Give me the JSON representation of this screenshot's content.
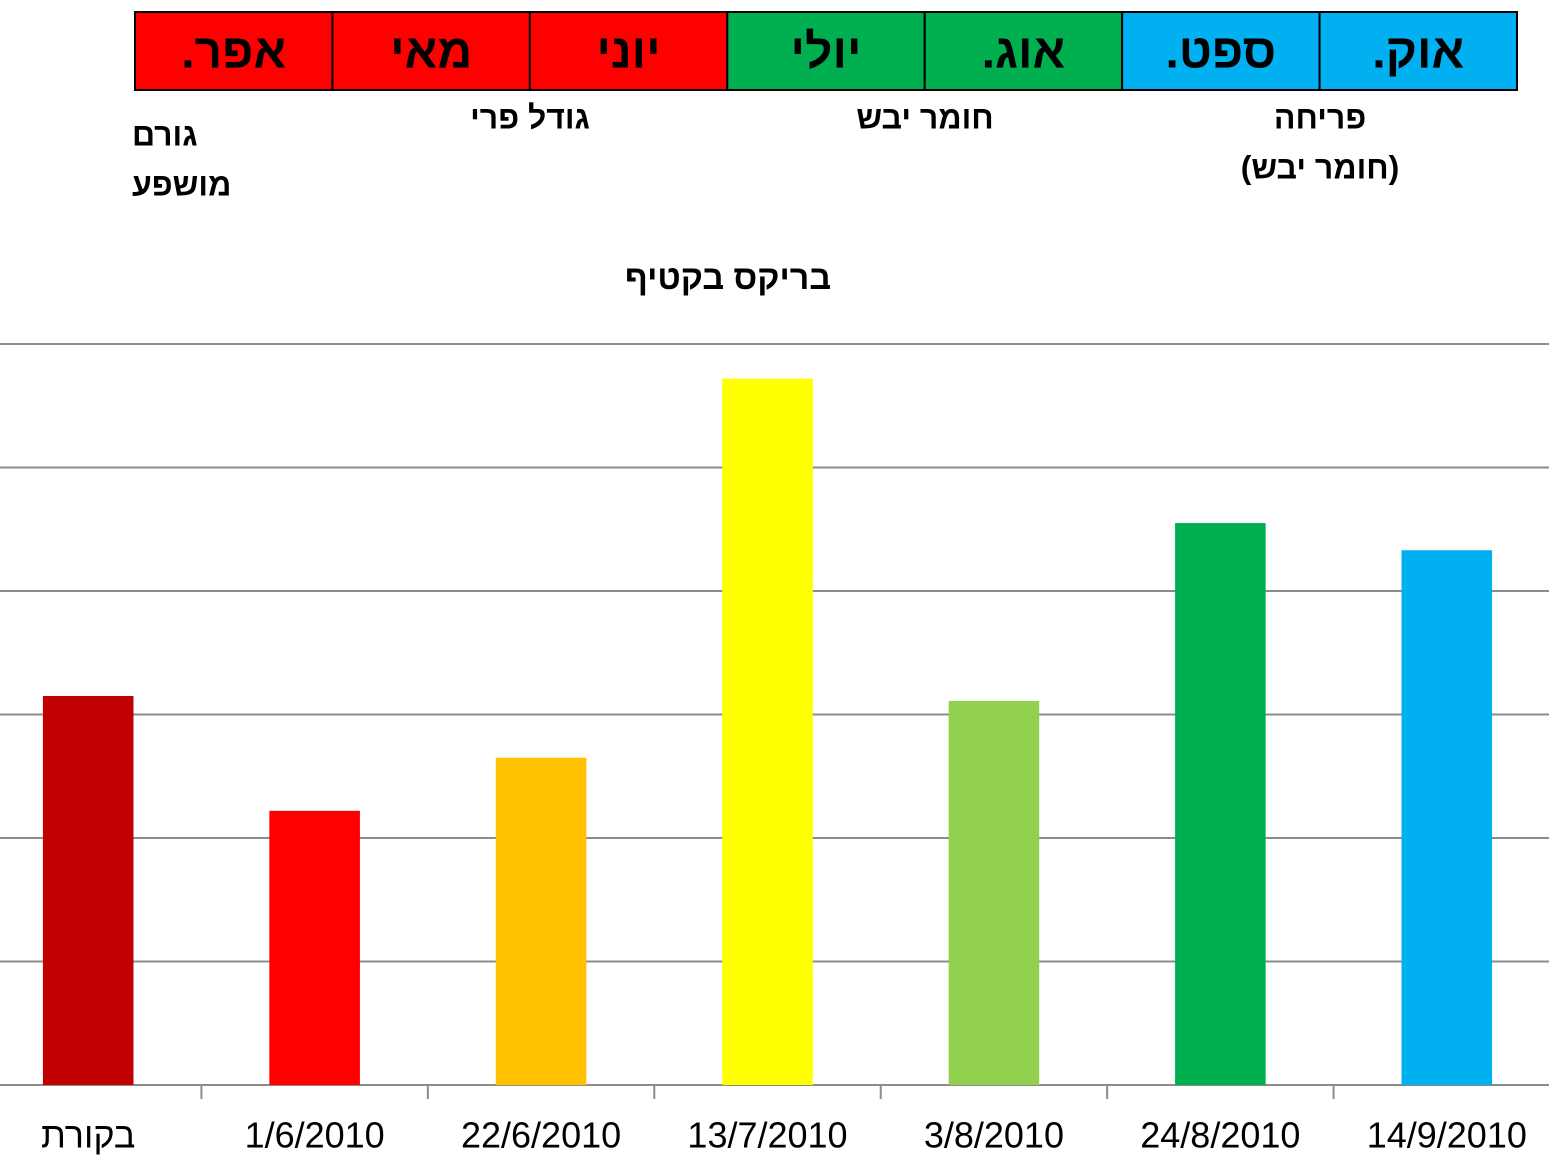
{
  "header": {
    "months": [
      {
        "label": "אפר.",
        "color": "#ff0000"
      },
      {
        "label": "מאי",
        "color": "#ff0000"
      },
      {
        "label": "יוני",
        "color": "#ff0000"
      },
      {
        "label": "יולי",
        "color": "#00b050"
      },
      {
        "label": "אוג.",
        "color": "#00b050"
      },
      {
        "label": "ספט.",
        "color": "#00b0f0"
      },
      {
        "label": "אוק.",
        "color": "#00b0f0"
      }
    ],
    "affected_factor": [
      "גורם",
      "מושפע"
    ],
    "stages": [
      [
        "גודל פרי"
      ],
      [
        "חומר יבש"
      ],
      [
        "פריחה",
        "(חומר יבש)"
      ]
    ]
  },
  "chart_data": {
    "type": "bar",
    "title": "בריקס בקטיף",
    "categories": [
      "בקורת",
      "1/6/2010",
      "22/6/2010",
      "13/7/2010",
      "3/8/2010",
      "24/8/2010",
      "14/9/2010"
    ],
    "values": [
      3.15,
      2.22,
      2.65,
      5.72,
      3.11,
      4.55,
      4.33
    ],
    "colors": [
      "#c00000",
      "#ff0000",
      "#ffc000",
      "#ffff00",
      "#92d050",
      "#00b050",
      "#00b0f0"
    ],
    "ylim": [
      0,
      6
    ],
    "yticks": [
      0,
      1,
      2,
      3,
      4,
      5,
      6
    ],
    "grid": true
  }
}
